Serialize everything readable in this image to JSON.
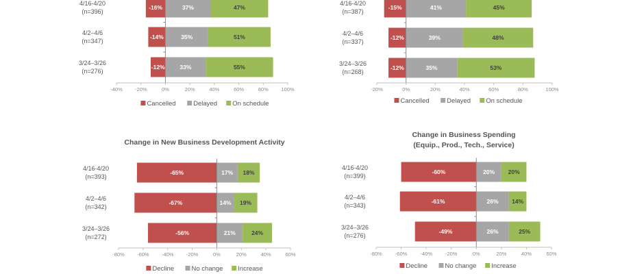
{
  "colors": {
    "red": "#c0504d",
    "gray": "#a6a6a6",
    "green": "#9bbb59",
    "axis": "#bfbfbf",
    "label_dark": "#404040",
    "label_light": "#ffffff"
  },
  "chart_data": [
    {
      "type": "bar",
      "orientation": "horizontal-stacked-diverging",
      "title": "",
      "categories": [
        "4/16-4/20\n(n=396)",
        "4/2–4/6\n(n=347)",
        "3/24–3/26\n(n=276)"
      ],
      "series": [
        {
          "name": "Cancelled",
          "values": [
            -16,
            -14,
            -12
          ],
          "labels": [
            "-16%",
            "-14%",
            "-12%"
          ],
          "color_key": "red"
        },
        {
          "name": "Delayed",
          "values": [
            37,
            35,
            33
          ],
          "labels": [
            "37%",
            "35%",
            "33%"
          ],
          "color_key": "gray"
        },
        {
          "name": "On schedule",
          "values": [
            47,
            51,
            55
          ],
          "labels": [
            "47%",
            "51%",
            "55%"
          ],
          "color_key": "green"
        }
      ],
      "xlim": [
        -40,
        100
      ],
      "xticks": [
        "-40%",
        "-20%",
        "0%",
        "20%",
        "40%",
        "60%",
        "80%",
        "100%"
      ],
      "xtick_values": [
        -40,
        -20,
        0,
        20,
        40,
        60,
        80,
        100
      ],
      "legend": [
        "Cancelled",
        "Delayed",
        "On schedule"
      ],
      "legend_position": "bottom",
      "grid": false
    },
    {
      "type": "bar",
      "orientation": "horizontal-stacked-diverging",
      "title": "",
      "categories": [
        "4/16-4/20\n(n=387)",
        "4/2–4/6\n(n=337)",
        "3/24–3/26\n(n=268)"
      ],
      "series": [
        {
          "name": "Cancelled",
          "values": [
            -15,
            -12,
            -12
          ],
          "labels": [
            "-15%",
            "-12%",
            "-12%"
          ],
          "color_key": "red"
        },
        {
          "name": "Delayed",
          "values": [
            41,
            39,
            35
          ],
          "labels": [
            "41%",
            "39%",
            "35%"
          ],
          "color_key": "gray"
        },
        {
          "name": "On schedule",
          "values": [
            45,
            48,
            53
          ],
          "labels": [
            "45%",
            "48%",
            "53%"
          ],
          "color_key": "green"
        }
      ],
      "xlim": [
        -20,
        100
      ],
      "xticks": [
        "-20%",
        "0%",
        "20%",
        "40%",
        "60%",
        "80%",
        "100%"
      ],
      "xtick_values": [
        -20,
        0,
        20,
        40,
        60,
        80,
        100
      ],
      "legend": [
        "Cancelled",
        "Delayed",
        "On schedule"
      ],
      "legend_position": "bottom",
      "grid": false
    },
    {
      "type": "bar",
      "orientation": "horizontal-stacked-diverging",
      "title": "Change in New Business Development Activity",
      "categories": [
        "4/16-4/20\n(n=393)",
        "4/2–4/6\n(n=342)",
        "3/24–3/26\n(n=272)"
      ],
      "series": [
        {
          "name": "Decline",
          "values": [
            -65,
            -67,
            -56
          ],
          "labels": [
            "-65%",
            "-67%",
            "-56%"
          ],
          "color_key": "red"
        },
        {
          "name": "No change",
          "values": [
            17,
            14,
            21
          ],
          "labels": [
            "17%",
            "14%",
            "21%"
          ],
          "color_key": "gray"
        },
        {
          "name": "Increase",
          "values": [
            18,
            19,
            24
          ],
          "labels": [
            "18%",
            "19%",
            "24%"
          ],
          "color_key": "green"
        }
      ],
      "xlim": [
        -80,
        60
      ],
      "xticks": [
        "-80%",
        "-60%",
        "-40%",
        "-20%",
        "0%",
        "20%",
        "40%",
        "60%"
      ],
      "xtick_values": [
        -80,
        -60,
        -40,
        -20,
        0,
        20,
        40,
        60
      ],
      "legend": [
        "Decline",
        "No change",
        "Increase"
      ],
      "legend_position": "bottom",
      "grid": false
    },
    {
      "type": "bar",
      "orientation": "horizontal-stacked-diverging",
      "title": "Change in Business Spending\n(Equip., Prod., Tech., Service)",
      "categories": [
        "4/16-4/20\n(n=399)",
        "4/2–4/6\n(n=343)",
        "3/24–3/26\n(n=276)"
      ],
      "series": [
        {
          "name": "Decline",
          "values": [
            -60,
            -61,
            -49
          ],
          "labels": [
            "-60%",
            "-61%",
            "-49%"
          ],
          "color_key": "red"
        },
        {
          "name": "No change",
          "values": [
            20,
            26,
            26
          ],
          "labels": [
            "20%",
            "26%",
            "26%"
          ],
          "color_key": "gray"
        },
        {
          "name": "Increase",
          "values": [
            20,
            14,
            25
          ],
          "labels": [
            "20%",
            "14%",
            "25%"
          ],
          "color_key": "green"
        }
      ],
      "xlim": [
        -80,
        60
      ],
      "xticks": [
        "-80%",
        "-60%",
        "-40%",
        "-20%",
        "0%",
        "20%",
        "40%",
        "60%"
      ],
      "xtick_values": [
        -80,
        -60,
        -40,
        -20,
        0,
        20,
        40,
        60
      ],
      "legend": [
        "Decline",
        "No change",
        "Increase"
      ],
      "legend_position": "bottom",
      "grid": false
    }
  ]
}
